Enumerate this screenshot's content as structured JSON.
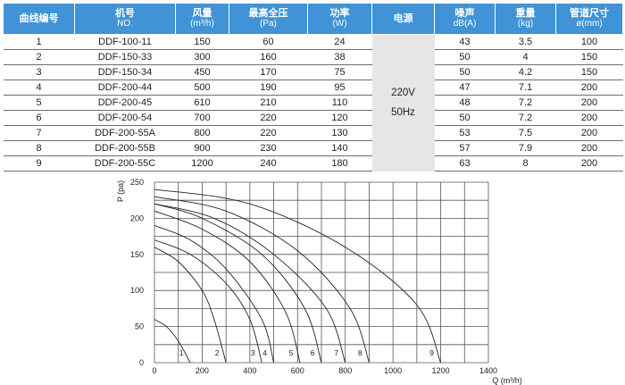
{
  "table": {
    "headers": {
      "curve_no": "曲线编号",
      "model": "机号",
      "model_sub": "NO.",
      "airflow": "风量",
      "airflow_sub": "(m³/h)",
      "pressure": "最高全压",
      "pressure_sub": "(Pa)",
      "power": "功率",
      "power_sub": "(W)",
      "supply": "电源",
      "noise": "噪声",
      "noise_sub": "dB(A)",
      "weight": "重量",
      "weight_sub": "(kg)",
      "duct": "管道尺寸",
      "duct_sub": "ø(mm)"
    },
    "power_supply": [
      "220V",
      "50Hz"
    ],
    "rows": [
      {
        "curve": "1",
        "model": "DDF-100-11",
        "airflow": "150",
        "pressure": "60",
        "power": "24",
        "noise": "43",
        "weight": "3.5",
        "duct": "100"
      },
      {
        "curve": "2",
        "model": "DDF-150-33",
        "airflow": "300",
        "pressure": "160",
        "power": "38",
        "noise": "50",
        "weight": "4",
        "duct": "150"
      },
      {
        "curve": "3",
        "model": "DDF-150-34",
        "airflow": "450",
        "pressure": "170",
        "power": "75",
        "noise": "50",
        "weight": "4.2",
        "duct": "150"
      },
      {
        "curve": "4",
        "model": "DDF-200-44",
        "airflow": "500",
        "pressure": "190",
        "power": "95",
        "noise": "47",
        "weight": "7.1",
        "duct": "200"
      },
      {
        "curve": "5",
        "model": "DDF-200-45",
        "airflow": "610",
        "pressure": "210",
        "power": "110",
        "noise": "48",
        "weight": "7.2",
        "duct": "200"
      },
      {
        "curve": "6",
        "model": "DDF-200-54",
        "airflow": "700",
        "pressure": "220",
        "power": "120",
        "noise": "50",
        "weight": "7.2",
        "duct": "200"
      },
      {
        "curve": "7",
        "model": "DDF-200-55A",
        "airflow": "800",
        "pressure": "220",
        "power": "130",
        "noise": "53",
        "weight": "7.5",
        "duct": "200"
      },
      {
        "curve": "8",
        "model": "DDF-200-55B",
        "airflow": "900",
        "pressure": "230",
        "power": "140",
        "noise": "57",
        "weight": "7.9",
        "duct": "200"
      },
      {
        "curve": "9",
        "model": "DDF-200-55C",
        "airflow": "1200",
        "pressure": "240",
        "power": "180",
        "noise": "63",
        "weight": "8",
        "duct": "200"
      }
    ]
  },
  "chart_data": {
    "type": "line",
    "xlabel": "Q (m³/h)",
    "ylabel": "P (pa)",
    "xlim": [
      0,
      1400
    ],
    "ylim": [
      0,
      250
    ],
    "xticks": [
      0,
      200,
      400,
      600,
      800,
      1000,
      1200,
      1400
    ],
    "yticks": [
      0,
      50,
      100,
      150,
      200,
      250
    ],
    "grid": true,
    "colors": {
      "line": "#222222",
      "grid": "#555555",
      "header": "#3f93d6",
      "power_cell": "#e6e6e6"
    },
    "series": [
      {
        "name": "1",
        "x": [
          0,
          50,
          100,
          150
        ],
        "y": [
          60,
          50,
          30,
          0
        ]
      },
      {
        "name": "2",
        "x": [
          0,
          100,
          200,
          250,
          300
        ],
        "y": [
          160,
          140,
          100,
          60,
          0
        ]
      },
      {
        "name": "3",
        "x": [
          0,
          150,
          300,
          400,
          450
        ],
        "y": [
          170,
          150,
          110,
          60,
          0
        ]
      },
      {
        "name": "4",
        "x": [
          0,
          150,
          300,
          450,
          500
        ],
        "y": [
          190,
          170,
          130,
          60,
          0
        ]
      },
      {
        "name": "5",
        "x": [
          0,
          200,
          400,
          550,
          610
        ],
        "y": [
          210,
          185,
          140,
          70,
          0
        ]
      },
      {
        "name": "6",
        "x": [
          0,
          200,
          450,
          630,
          700
        ],
        "y": [
          220,
          200,
          150,
          75,
          0
        ]
      },
      {
        "name": "7",
        "x": [
          0,
          250,
          500,
          720,
          800
        ],
        "y": [
          220,
          200,
          150,
          75,
          0
        ]
      },
      {
        "name": "8",
        "x": [
          0,
          300,
          600,
          820,
          900
        ],
        "y": [
          230,
          210,
          155,
          75,
          0
        ]
      },
      {
        "name": "9",
        "x": [
          0,
          400,
          800,
          1100,
          1200
        ],
        "y": [
          240,
          220,
          160,
          80,
          0
        ]
      }
    ]
  }
}
